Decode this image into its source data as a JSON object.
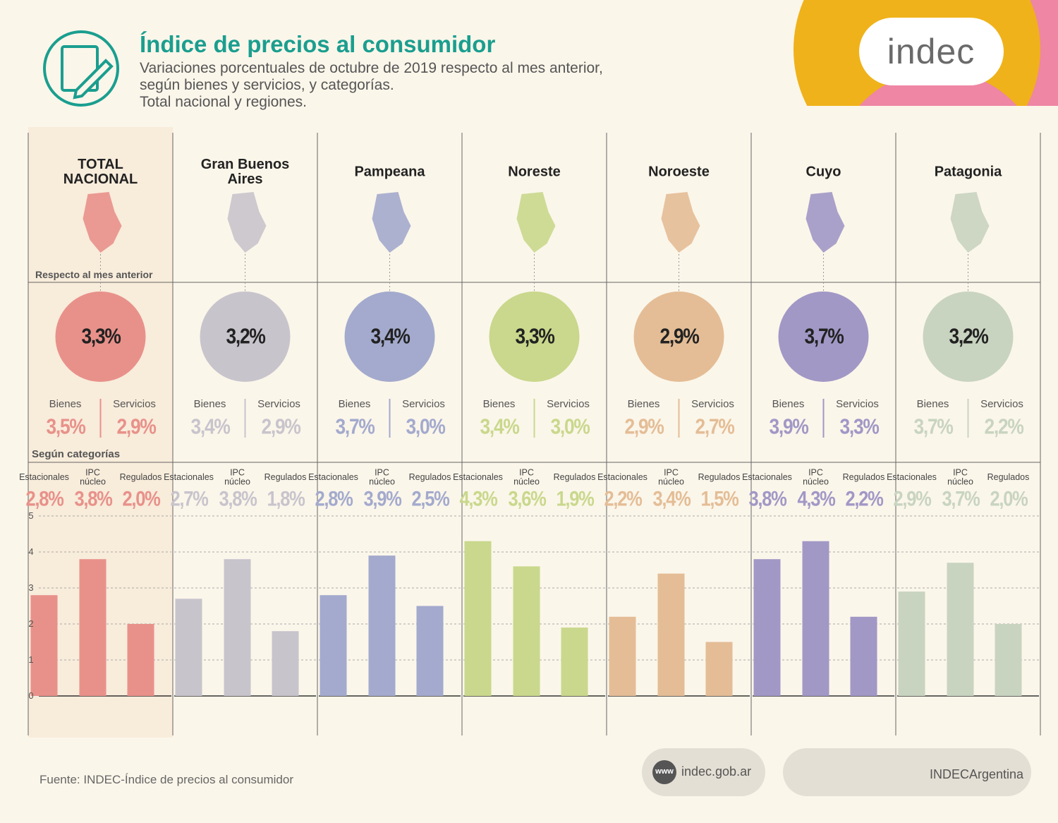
{
  "header": {
    "title": "Índice de precios al consumidor",
    "subtitle": [
      "Variaciones porcentuales de octubre de 2019 respecto al mes anterior,",
      "según bienes y servicios, y categorías.",
      "Total nacional y regiones."
    ],
    "logo": "indec"
  },
  "labels": {
    "respecto": "Respecto al mes anterior",
    "segun": "Según categorías",
    "bienes": "Bienes",
    "servicios": "Servicios"
  },
  "chart_data": [
    {
      "type": "bar",
      "title": "TOTAL NACIONAL",
      "color": "#e8918a",
      "total": "3,3%",
      "bienes": "3,5%",
      "servicios": "2,9%",
      "categories": [
        "Estacionales",
        "IPC núcleo",
        "Regulados"
      ],
      "values": [
        2.8,
        3.8,
        2.0
      ],
      "value_labels": [
        "2,8%",
        "3,8%",
        "2,0%"
      ],
      "ylim": [
        0,
        5
      ],
      "yticks": [
        0,
        1,
        2,
        3,
        4,
        5
      ],
      "grid": true
    },
    {
      "type": "bar",
      "title": "Gran Buenos Aires",
      "color": "#c8c4cc",
      "total": "3,2%",
      "bienes": "3,4%",
      "servicios": "2,9%",
      "categories": [
        "Estacionales",
        "IPC núcleo",
        "Regulados"
      ],
      "values": [
        2.7,
        3.8,
        1.8
      ],
      "value_labels": [
        "2,7%",
        "3,8%",
        "1,8%"
      ],
      "ylim": [
        0,
        5
      ],
      "yticks": [
        0,
        1,
        2,
        3,
        4,
        5
      ],
      "grid": true
    },
    {
      "type": "bar",
      "title": "Pampeana",
      "color": "#a3aacd",
      "total": "3,4%",
      "bienes": "3,7%",
      "servicios": "3,0%",
      "categories": [
        "Estacionales",
        "IPC núcleo",
        "Regulados"
      ],
      "values": [
        2.8,
        3.9,
        2.5
      ],
      "value_labels": [
        "2,8%",
        "3,9%",
        "2,5%"
      ],
      "ylim": [
        0,
        5
      ],
      "yticks": [
        0,
        1,
        2,
        3,
        4,
        5
      ],
      "grid": true
    },
    {
      "type": "bar",
      "title": "Noreste",
      "color": "#c9d88c",
      "total": "3,3%",
      "bienes": "3,4%",
      "servicios": "3,0%",
      "categories": [
        "Estacionales",
        "IPC núcleo",
        "Regulados"
      ],
      "values": [
        4.3,
        3.6,
        1.9
      ],
      "value_labels": [
        "4,3%",
        "3,6%",
        "1,9%"
      ],
      "ylim": [
        0,
        5
      ],
      "yticks": [
        0,
        1,
        2,
        3,
        4,
        5
      ],
      "grid": true
    },
    {
      "type": "bar",
      "title": "Noroeste",
      "color": "#e4bd96",
      "total": "2,9%",
      "bienes": "2,9%",
      "servicios": "2,7%",
      "categories": [
        "Estacionales",
        "IPC núcleo",
        "Regulados"
      ],
      "values": [
        2.2,
        3.4,
        1.5
      ],
      "value_labels": [
        "2,2%",
        "3,4%",
        "1,5%"
      ],
      "ylim": [
        0,
        5
      ],
      "yticks": [
        0,
        1,
        2,
        3,
        4,
        5
      ],
      "grid": true
    },
    {
      "type": "bar",
      "title": "Cuyo",
      "color": "#a198c6",
      "total": "3,7%",
      "bienes": "3,9%",
      "servicios": "3,3%",
      "categories": [
        "Estacionales",
        "IPC núcleo",
        "Regulados"
      ],
      "values": [
        3.8,
        4.3,
        2.2
      ],
      "value_labels": [
        "3,8%",
        "4,3%",
        "2,2%"
      ],
      "ylim": [
        0,
        5
      ],
      "yticks": [
        0,
        1,
        2,
        3,
        4,
        5
      ],
      "grid": true
    },
    {
      "type": "bar",
      "title": "Patagonia",
      "color": "#c8d4c0",
      "total": "3,2%",
      "bienes": "3,7%",
      "servicios": "2,2%",
      "categories": [
        "Estacionales",
        "IPC núcleo",
        "Regulados"
      ],
      "values": [
        2.9,
        3.7,
        2.0
      ],
      "value_labels": [
        "2,9%",
        "3,7%",
        "2,0%"
      ],
      "ylim": [
        0,
        5
      ],
      "yticks": [
        0,
        1,
        2,
        3,
        4,
        5
      ],
      "grid": true
    }
  ],
  "footer": {
    "source": "Fuente: INDEC-Índice de precios al consumidor",
    "www": "www",
    "web": "indec.gob.ar",
    "social": "INDECArgentina"
  }
}
